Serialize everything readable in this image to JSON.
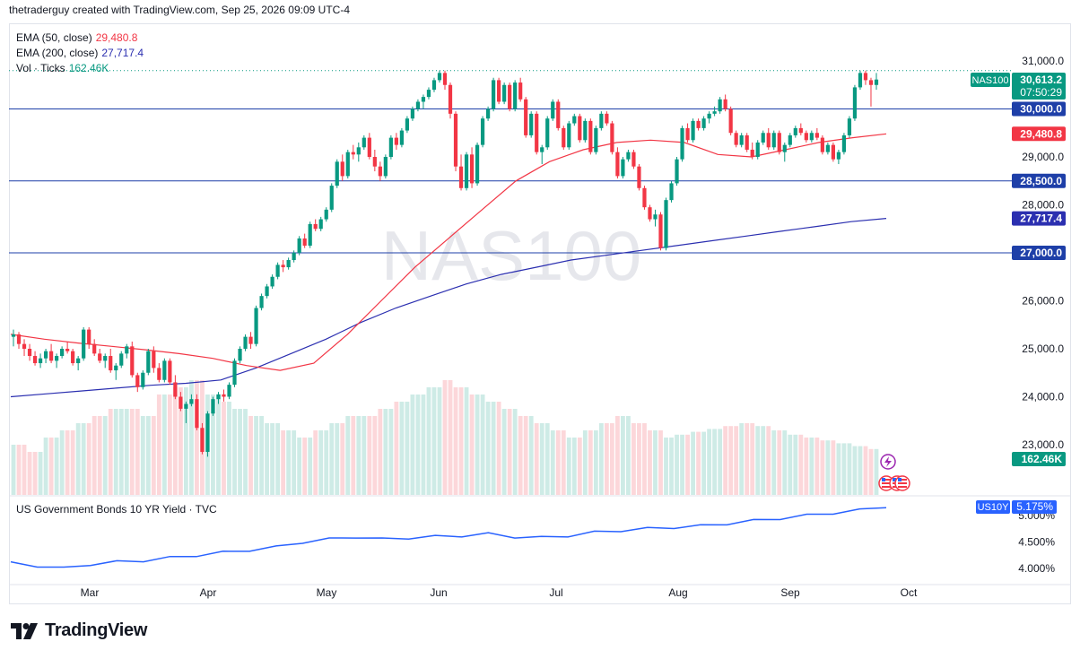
{
  "header": {
    "attribution": "thetraderguy created with TradingView.com, Sep 25, 2026 09:09 UTC-4"
  },
  "legend": {
    "ema50_label": "EMA (50, close)",
    "ema50_value": "29,480.8",
    "ema200_label": "EMA (200, close)",
    "ema200_value": "27,717.4",
    "vol_label": "Vol · Ticks",
    "vol_value": "162.46K"
  },
  "watermark": "NAS100",
  "price_axis_labels": [
    "31,000.0",
    "29,000.0",
    "28,000.0",
    "26,000.0",
    "25,000.0",
    "24,000.0",
    "23,000.0"
  ],
  "price_tags": {
    "symbol": "NAS100",
    "last": "30,613.2",
    "countdown": "07:50:29",
    "level_30000": "30,000.0",
    "ema50": "29,480.8",
    "level_28500": "28,500.0",
    "ema200": "27,717.4",
    "level_27000": "27,000.0",
    "volume": "162.46K"
  },
  "bond_panel": {
    "label": "US Government Bonds 10 YR Yield · TVC",
    "symbol": "US10Y",
    "last": "5.175%",
    "axis_labels": [
      "5.000%",
      "4.500%",
      "4.000%"
    ]
  },
  "x_axis_labels": [
    "Mar",
    "Apr",
    "May",
    "Jun",
    "Jul",
    "Aug",
    "Sep",
    "Oct"
  ],
  "footer": {
    "brand": "TradingView"
  },
  "colors": {
    "up": "#089981",
    "down": "#f23645",
    "ema50": "#f23645",
    "ema200": "#2b2fb0",
    "level": "#1e3fa8",
    "bond": "#2962ff"
  },
  "chart_data": {
    "type": "candlestick",
    "symbol": "NAS100",
    "horizontal_levels": [
      30000,
      28500,
      27000
    ],
    "ylim": [
      22400,
      31400
    ],
    "candles_approx": [
      [
        25250,
        25400,
        25050,
        25300
      ],
      [
        25300,
        25350,
        25000,
        25100
      ],
      [
        25100,
        25200,
        24850,
        25000
      ],
      [
        25000,
        25100,
        24750,
        24850
      ],
      [
        24850,
        24950,
        24650,
        24700
      ],
      [
        24700,
        24900,
        24600,
        24800
      ],
      [
        24800,
        25000,
        24700,
        24950
      ],
      [
        24950,
        25100,
        24700,
        24750
      ],
      [
        24750,
        24900,
        24600,
        24850
      ],
      [
        24850,
        25050,
        24800,
        25000
      ],
      [
        25000,
        25150,
        24900,
        24950
      ],
      [
        24950,
        25000,
        24650,
        24700
      ],
      [
        24700,
        24850,
        24550,
        24800
      ],
      [
        24800,
        25450,
        24750,
        25400
      ],
      [
        25400,
        25450,
        25000,
        25100
      ],
      [
        25100,
        25200,
        24850,
        24900
      ],
      [
        24900,
        25000,
        24700,
        24750
      ],
      [
        24750,
        24900,
        24600,
        24850
      ],
      [
        24850,
        25000,
        24500,
        24550
      ],
      [
        24550,
        24700,
        24350,
        24650
      ],
      [
        24650,
        24950,
        24600,
        24900
      ],
      [
        24900,
        25100,
        24800,
        25050
      ],
      [
        25050,
        25150,
        24400,
        24450
      ],
      [
        24450,
        24500,
        24100,
        24200
      ],
      [
        24200,
        24550,
        24150,
        24500
      ],
      [
        24500,
        25000,
        24450,
        24950
      ],
      [
        24950,
        25050,
        24500,
        24600
      ],
      [
        24600,
        24700,
        24300,
        24350
      ],
      [
        24350,
        24800,
        24300,
        24750
      ],
      [
        24750,
        24800,
        24250,
        24300
      ],
      [
        24300,
        24450,
        23950,
        24000
      ],
      [
        24000,
        24100,
        23700,
        23750
      ],
      [
        23750,
        23900,
        23450,
        23850
      ],
      [
        23850,
        24050,
        23800,
        23950
      ],
      [
        23950,
        24050,
        23300,
        23350
      ],
      [
        23350,
        23450,
        22800,
        22850
      ],
      [
        22850,
        23700,
        22750,
        23650
      ],
      [
        23650,
        24000,
        23600,
        23950
      ],
      [
        23950,
        24100,
        23850,
        24050
      ],
      [
        24050,
        24150,
        23900,
        24000
      ],
      [
        24000,
        24300,
        23950,
        24250
      ],
      [
        24250,
        24800,
        24200,
        24750
      ],
      [
        24750,
        25050,
        24700,
        25000
      ],
      [
        25000,
        25300,
        24950,
        25250
      ],
      [
        25250,
        25350,
        25000,
        25100
      ],
      [
        25100,
        25900,
        25050,
        25850
      ],
      [
        25850,
        26150,
        25800,
        26100
      ],
      [
        26100,
        26350,
        26050,
        26300
      ],
      [
        26300,
        26550,
        26250,
        26500
      ],
      [
        26500,
        26800,
        26450,
        26750
      ],
      [
        26750,
        26850,
        26600,
        26700
      ],
      [
        26700,
        26900,
        26650,
        26850
      ],
      [
        26850,
        27050,
        26800,
        27000
      ],
      [
        27000,
        27350,
        26950,
        27300
      ],
      [
        27300,
        27400,
        27100,
        27150
      ],
      [
        27150,
        27650,
        27100,
        27600
      ],
      [
        27600,
        27700,
        27450,
        27500
      ],
      [
        27500,
        27750,
        27450,
        27700
      ],
      [
        27700,
        27950,
        27650,
        27900
      ],
      [
        27900,
        28450,
        27850,
        28400
      ],
      [
        28400,
        28950,
        28350,
        28900
      ],
      [
        28900,
        29050,
        28500,
        28600
      ],
      [
        28600,
        29150,
        28550,
        29100
      ],
      [
        29100,
        29250,
        28950,
        29050
      ],
      [
        29050,
        29300,
        28900,
        29200
      ],
      [
        29200,
        29450,
        29150,
        29400
      ],
      [
        29400,
        29500,
        28950,
        29000
      ],
      [
        29000,
        29150,
        28700,
        28800
      ],
      [
        28800,
        28900,
        28500,
        28600
      ],
      [
        28600,
        29050,
        28550,
        29000
      ],
      [
        29000,
        29450,
        28950,
        29400
      ],
      [
        29400,
        29500,
        29150,
        29250
      ],
      [
        29250,
        29600,
        29200,
        29550
      ],
      [
        29550,
        29850,
        29500,
        29800
      ],
      [
        29800,
        30050,
        29750,
        30000
      ],
      [
        30000,
        30200,
        29950,
        30150
      ],
      [
        30150,
        30300,
        30000,
        30250
      ],
      [
        30250,
        30450,
        30200,
        30400
      ],
      [
        30400,
        30650,
        30350,
        30600
      ],
      [
        30600,
        30800,
        30550,
        30750
      ],
      [
        30750,
        30800,
        30400,
        30500
      ],
      [
        30500,
        30550,
        29800,
        29900
      ],
      [
        29900,
        29950,
        28700,
        28800
      ],
      [
        28800,
        29050,
        28300,
        28350
      ],
      [
        28350,
        29100,
        28300,
        29050
      ],
      [
        29050,
        29200,
        28350,
        28450
      ],
      [
        28450,
        29300,
        28400,
        29250
      ],
      [
        29250,
        29850,
        29200,
        29800
      ],
      [
        29800,
        30050,
        29750,
        30000
      ],
      [
        30000,
        30650,
        29950,
        30600
      ],
      [
        30600,
        30650,
        30100,
        30150
      ],
      [
        30150,
        30550,
        30100,
        30500
      ],
      [
        30500,
        30550,
        29950,
        30000
      ],
      [
        30000,
        30600,
        29950,
        30550
      ],
      [
        30550,
        30650,
        30150,
        30200
      ],
      [
        30200,
        30250,
        29400,
        29450
      ],
      [
        29450,
        29950,
        29400,
        29900
      ],
      [
        29900,
        29950,
        29050,
        29100
      ],
      [
        29100,
        29250,
        28850,
        29200
      ],
      [
        29200,
        29850,
        29150,
        29800
      ],
      [
        29800,
        30200,
        29750,
        30150
      ],
      [
        30150,
        30200,
        29550,
        29600
      ],
      [
        29600,
        29650,
        29150,
        29200
      ],
      [
        29200,
        29750,
        29150,
        29700
      ],
      [
        29700,
        29900,
        29650,
        29850
      ],
      [
        29850,
        29900,
        29300,
        29350
      ],
      [
        29350,
        29800,
        29300,
        29750
      ],
      [
        29750,
        29800,
        29050,
        29100
      ],
      [
        29100,
        29650,
        29050,
        29600
      ],
      [
        29600,
        29950,
        29550,
        29900
      ],
      [
        29900,
        29950,
        29650,
        29700
      ],
      [
        29700,
        29750,
        29050,
        29100
      ],
      [
        29100,
        29200,
        28550,
        28600
      ],
      [
        28600,
        29000,
        28550,
        28950
      ],
      [
        28950,
        29150,
        28900,
        29100
      ],
      [
        29100,
        29150,
        28750,
        28800
      ],
      [
        28800,
        28850,
        28300,
        28350
      ],
      [
        28350,
        28400,
        27900,
        27950
      ],
      [
        27950,
        28000,
        27650,
        27700
      ],
      [
        27700,
        27900,
        27550,
        27800
      ],
      [
        27800,
        27850,
        27050,
        27100
      ],
      [
        27100,
        28150,
        27050,
        28100
      ],
      [
        28100,
        28500,
        28050,
        28450
      ],
      [
        28450,
        29000,
        28400,
        28950
      ],
      [
        28950,
        29650,
        28900,
        29600
      ],
      [
        29600,
        29700,
        29300,
        29350
      ],
      [
        29350,
        29800,
        29300,
        29750
      ],
      [
        29750,
        29800,
        29550,
        29600
      ],
      [
        29600,
        29850,
        29550,
        29800
      ],
      [
        29800,
        29950,
        29700,
        29900
      ],
      [
        29900,
        30050,
        29850,
        29950
      ],
      [
        29950,
        30250,
        29900,
        30200
      ],
      [
        30200,
        30300,
        29950,
        30000
      ],
      [
        30000,
        30050,
        29450,
        29500
      ],
      [
        29500,
        29550,
        29200,
        29250
      ],
      [
        29250,
        29500,
        29200,
        29450
      ],
      [
        29450,
        29500,
        29100,
        29150
      ],
      [
        29150,
        29300,
        28950,
        29000
      ],
      [
        29000,
        29350,
        28950,
        29300
      ],
      [
        29300,
        29550,
        29250,
        29500
      ],
      [
        29500,
        29600,
        29150,
        29200
      ],
      [
        29200,
        29550,
        29150,
        29500
      ],
      [
        29500,
        29550,
        29050,
        29100
      ],
      [
        29100,
        29300,
        28900,
        29250
      ],
      [
        29250,
        29500,
        29200,
        29450
      ],
      [
        29450,
        29650,
        29400,
        29600
      ],
      [
        29600,
        29700,
        29450,
        29500
      ],
      [
        29500,
        29550,
        29300,
        29350
      ],
      [
        29350,
        29550,
        29300,
        29500
      ],
      [
        29500,
        29600,
        29350,
        29400
      ],
      [
        29400,
        29450,
        29050,
        29100
      ],
      [
        29100,
        29300,
        29050,
        29250
      ],
      [
        29250,
        29300,
        28900,
        28950
      ],
      [
        28950,
        29150,
        28850,
        29100
      ],
      [
        29100,
        29500,
        29050,
        29450
      ],
      [
        29450,
        29850,
        29400,
        29800
      ],
      [
        29800,
        30500,
        29750,
        30450
      ],
      [
        30450,
        30800,
        30400,
        30750
      ],
      [
        30750,
        30800,
        30500,
        30600
      ],
      [
        30600,
        30650,
        30050,
        30500
      ],
      [
        30500,
        30750,
        30400,
        30613
      ]
    ],
    "ema50_approx": [
      25300,
      25200,
      25120,
      25050,
      24980,
      24900,
      24800,
      24650,
      24550,
      24700,
      25300,
      26000,
      26700,
      27300,
      27900,
      28500,
      28900,
      29150,
      29300,
      29350,
      29300,
      29050,
      29000,
      29150,
      29300,
      29400,
      29480
    ],
    "ema200_approx": [
      24000,
      24060,
      24120,
      24180,
      24240,
      24280,
      24350,
      24600,
      24900,
      25200,
      25550,
      25850,
      26100,
      26350,
      26550,
      26700,
      26850,
      26950,
      27050,
      27150,
      27250,
      27350,
      27450,
      27550,
      27650,
      27717
    ],
    "volume_ticks_relative": [
      0.35,
      0.3,
      0.4,
      0.45,
      0.5,
      0.55,
      0.6,
      0.6,
      0.55,
      0.7,
      0.75,
      0.8,
      0.7,
      0.65,
      0.6,
      0.55,
      0.5,
      0.45,
      0.4,
      0.45,
      0.5,
      0.55,
      0.55,
      0.6,
      0.65,
      0.7,
      0.75,
      0.8,
      0.75,
      0.7,
      0.65,
      0.6,
      0.55,
      0.5,
      0.45,
      0.4,
      0.45,
      0.5,
      0.55,
      0.5,
      0.45,
      0.4,
      0.42,
      0.44,
      0.46,
      0.48,
      0.5,
      0.48,
      0.45,
      0.42,
      0.4,
      0.38,
      0.36,
      0.34,
      0.32
    ],
    "bond_yield_pct_approx": [
      4.1,
      4.05,
      4.0,
      4.08,
      4.12,
      4.15,
      4.2,
      4.25,
      4.3,
      4.35,
      4.4,
      4.5,
      4.55,
      4.6,
      4.55,
      4.58,
      4.6,
      4.62,
      4.65,
      4.6,
      4.58,
      4.62,
      4.68,
      4.72,
      4.75,
      4.78,
      4.8,
      4.85,
      4.9,
      4.95,
      5.0,
      5.05,
      5.1,
      5.175
    ],
    "x_axis_labels": [
      "Mar",
      "Apr",
      "May",
      "Jun",
      "Jul",
      "Aug",
      "Sep",
      "Oct"
    ]
  }
}
